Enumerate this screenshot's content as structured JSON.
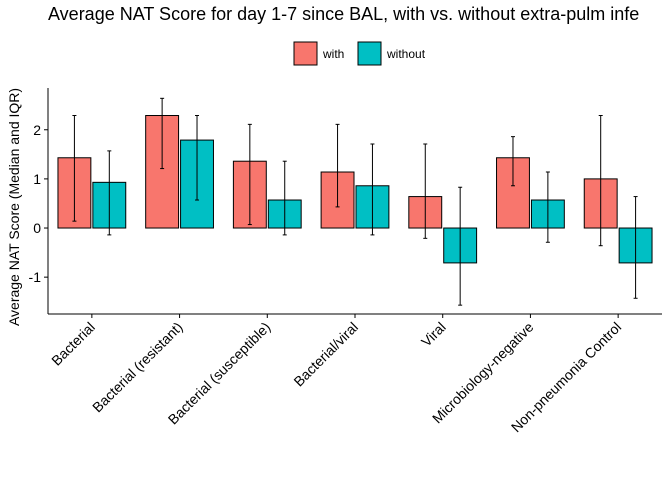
{
  "chart_data": {
    "type": "bar",
    "title": "Average NAT Score for day 1-7 since BAL, with vs. without extra-pulm infe",
    "xlabel": "",
    "ylabel": "Average NAT Score (Median and IQR)",
    "ylim": [
      -1.75,
      2.85
    ],
    "yticks": [
      -1,
      0,
      1,
      2
    ],
    "grid": false,
    "legend_position": "top",
    "categories": [
      "Bacterial",
      "Bacterial (resistant)",
      "Bacterial (susceptible)",
      "Bacterial/viral",
      "Viral",
      "Microbiology-negative",
      "Non-pneumonia Control"
    ],
    "series": [
      {
        "name": "with",
        "color": "#F8766D",
        "values": [
          1.43,
          2.29,
          1.36,
          1.14,
          0.64,
          1.43,
          1.0
        ],
        "iqr_low": [
          0.14,
          1.21,
          0.07,
          0.43,
          -0.21,
          0.86,
          -0.36
        ],
        "iqr_high": [
          2.29,
          2.64,
          2.11,
          2.11,
          1.71,
          1.86,
          2.29
        ]
      },
      {
        "name": "without",
        "color": "#00BFC4",
        "values": [
          0.93,
          1.79,
          0.57,
          0.86,
          -0.71,
          0.57,
          -0.71
        ],
        "iqr_low": [
          -0.14,
          0.57,
          -0.14,
          -0.14,
          -1.57,
          -0.29,
          -1.43
        ],
        "iqr_high": [
          1.57,
          2.29,
          1.36,
          1.71,
          0.83,
          1.14,
          0.64
        ]
      }
    ]
  }
}
